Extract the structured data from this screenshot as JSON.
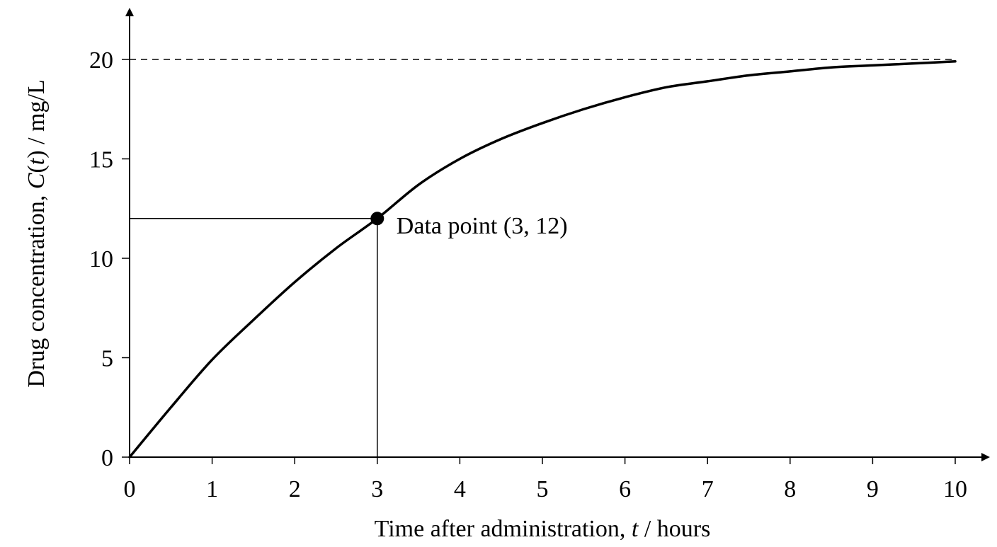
{
  "chart_data": {
    "type": "line",
    "title": "",
    "xlabel": {
      "prefix": "Time after administration, ",
      "variable": "t",
      "suffix": " / hours"
    },
    "ylabel": {
      "prefix": "Drug concentration, ",
      "function": "C",
      "open": "(",
      "variable": "t",
      "close": ")",
      "suffix": " / mg/L"
    },
    "xlim": [
      0,
      10
    ],
    "ylim": [
      0,
      20
    ],
    "x_ticks": [
      0,
      1,
      2,
      3,
      4,
      5,
      6,
      7,
      8,
      9,
      10
    ],
    "y_ticks": [
      0,
      5,
      10,
      15,
      20
    ],
    "grid": false,
    "legend": "none",
    "series": [
      {
        "x": [
          0,
          0.5,
          1,
          1.5,
          2,
          2.5,
          3,
          3.5,
          4,
          4.5,
          5,
          5.5,
          6,
          6.5,
          7,
          7.5,
          8,
          8.5,
          9,
          9.5,
          10
        ],
        "y": [
          0,
          2.5,
          4.9,
          6.9,
          8.8,
          10.5,
          12.0,
          13.7,
          15.0,
          16.0,
          16.8,
          17.5,
          18.1,
          18.6,
          18.9,
          19.2,
          19.4,
          19.6,
          19.7,
          19.8,
          19.9
        ],
        "color": "#000000"
      }
    ],
    "asymptote": {
      "y": 20,
      "style": "dashed"
    },
    "highlight_point": {
      "x": 3,
      "y": 12,
      "label": "Data point (3, 12)",
      "guide_lines": true
    }
  }
}
